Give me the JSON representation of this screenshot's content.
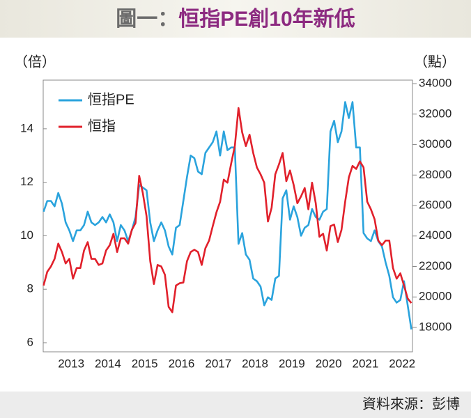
{
  "chart_data": {
    "type": "line",
    "figure_label": "圖一：",
    "title": "恒指PE創10年新低",
    "y_label": "（倍）",
    "y2_label": "（點）",
    "source": "資料來源：彭博",
    "legend": "upper left",
    "xlim": [
      2012.74,
      2022.78
    ],
    "xticks": [
      {
        "value": 2013.5,
        "label": "2013"
      },
      {
        "value": 2014.5,
        "label": "2014"
      },
      {
        "value": 2015.5,
        "label": "2015"
      },
      {
        "value": 2016.5,
        "label": "2016"
      },
      {
        "value": 2017.5,
        "label": "2017"
      },
      {
        "value": 2018.5,
        "label": "2018"
      },
      {
        "value": 2019.5,
        "label": "2019"
      },
      {
        "value": 2020.5,
        "label": "2020"
      },
      {
        "value": 2021.5,
        "label": "2021"
      },
      {
        "value": 2022.5,
        "label": "2022"
      }
    ],
    "ylim": [
      5.66,
      15.82
    ],
    "yticks": [
      6,
      8,
      10,
      12,
      14
    ],
    "y2lim": [
      16400,
      34230
    ],
    "y2ticks": [
      18000,
      20000,
      22000,
      24000,
      26000,
      28000,
      30000,
      32000,
      34000
    ],
    "x": [
      2012.75,
      2012.85,
      2012.95,
      2013.05,
      2013.15,
      2013.25,
      2013.35,
      2013.45,
      2013.55,
      2013.65,
      2013.75,
      2013.85,
      2013.95,
      2014.05,
      2014.15,
      2014.25,
      2014.35,
      2014.45,
      2014.55,
      2014.65,
      2014.75,
      2014.85,
      2014.95,
      2015.05,
      2015.15,
      2015.25,
      2015.35,
      2015.45,
      2015.55,
      2015.65,
      2015.75,
      2015.85,
      2015.95,
      2016.05,
      2016.15,
      2016.25,
      2016.35,
      2016.45,
      2016.55,
      2016.65,
      2016.75,
      2016.85,
      2016.95,
      2017.05,
      2017.15,
      2017.25,
      2017.35,
      2017.45,
      2017.55,
      2017.65,
      2017.75,
      2017.85,
      2017.95,
      2018.05,
      2018.15,
      2018.25,
      2018.35,
      2018.45,
      2018.55,
      2018.65,
      2018.75,
      2018.85,
      2018.95,
      2019.05,
      2019.15,
      2019.25,
      2019.35,
      2019.45,
      2019.55,
      2019.65,
      2019.75,
      2019.85,
      2019.95,
      2020.05,
      2020.15,
      2020.25,
      2020.35,
      2020.45,
      2020.55,
      2020.65,
      2020.75,
      2020.85,
      2020.95,
      2021.05,
      2021.15,
      2021.25,
      2021.35,
      2021.45,
      2021.55,
      2021.65,
      2021.75,
      2021.85,
      2021.95,
      2022.05,
      2022.15,
      2022.25,
      2022.35,
      2022.45,
      2022.55,
      2022.65,
      2022.75
    ],
    "series": [
      {
        "name": "恒指PE",
        "color": "#2aa3dd",
        "axis": "y",
        "values": [
          10.9,
          11.3,
          11.3,
          11.1,
          11.6,
          11.2,
          10.5,
          10.2,
          9.8,
          10.2,
          10.2,
          10.4,
          10.9,
          10.5,
          10.4,
          10.5,
          10.7,
          10.5,
          10.8,
          10.5,
          9.8,
          10.4,
          10.2,
          9.8,
          10.2,
          10.7,
          11.9,
          11.8,
          11.7,
          10.5,
          9.8,
          10.2,
          10.5,
          10.2,
          9.6,
          9.3,
          10.3,
          10.4,
          11.3,
          12.2,
          13.0,
          12.9,
          12.4,
          12.3,
          13.1,
          13.3,
          13.5,
          13.9,
          13.0,
          13.9,
          13.2,
          13.3,
          13.3,
          9.7,
          10.1,
          9.3,
          9.1,
          8.4,
          8.3,
          8.1,
          7.4,
          7.7,
          7.6,
          8.4,
          8.5,
          11.4,
          11.7,
          10.6,
          11.1,
          10.7,
          10.0,
          10.3,
          10.4,
          11.0,
          10.7,
          10.6,
          10.9,
          11.0,
          13.9,
          14.3,
          13.5,
          13.9,
          15.0,
          14.4,
          15.0,
          13.3,
          13.3,
          10.1,
          9.9,
          9.8,
          10.2,
          9.8,
          9.6,
          9.0,
          8.5,
          7.7,
          7.5,
          7.6,
          8.3,
          7.4,
          6.5
        ]
      },
      {
        "name": "恒指",
        "color": "#e1202b",
        "axis": "y2",
        "values": [
          20750,
          21650,
          22000,
          22500,
          23500,
          22950,
          22200,
          22500,
          21200,
          21900,
          21900,
          23050,
          23600,
          22500,
          22500,
          22100,
          22200,
          23050,
          23400,
          24150,
          22950,
          23850,
          23850,
          23500,
          24400,
          24850,
          27950,
          26800,
          25300,
          22350,
          20850,
          22100,
          22000,
          21450,
          19350,
          19000,
          20750,
          20900,
          20950,
          22350,
          22950,
          23100,
          22950,
          22100,
          23200,
          23700,
          24650,
          25550,
          26250,
          27700,
          27500,
          28750,
          29900,
          32400,
          30800,
          29900,
          30650,
          29450,
          28500,
          28050,
          27500,
          24950,
          25850,
          28050,
          28700,
          29450,
          27600,
          28300,
          27350,
          26150,
          26600,
          27150,
          25750,
          27500,
          26150,
          23950,
          24150,
          23050,
          24650,
          24750,
          23600,
          24400,
          26250,
          27850,
          28600,
          28400,
          28900,
          28500,
          26250,
          25750,
          25100,
          23700,
          23400,
          23700,
          23700,
          21900,
          21200,
          21550,
          20750,
          19900,
          19600
        ]
      }
    ]
  }
}
